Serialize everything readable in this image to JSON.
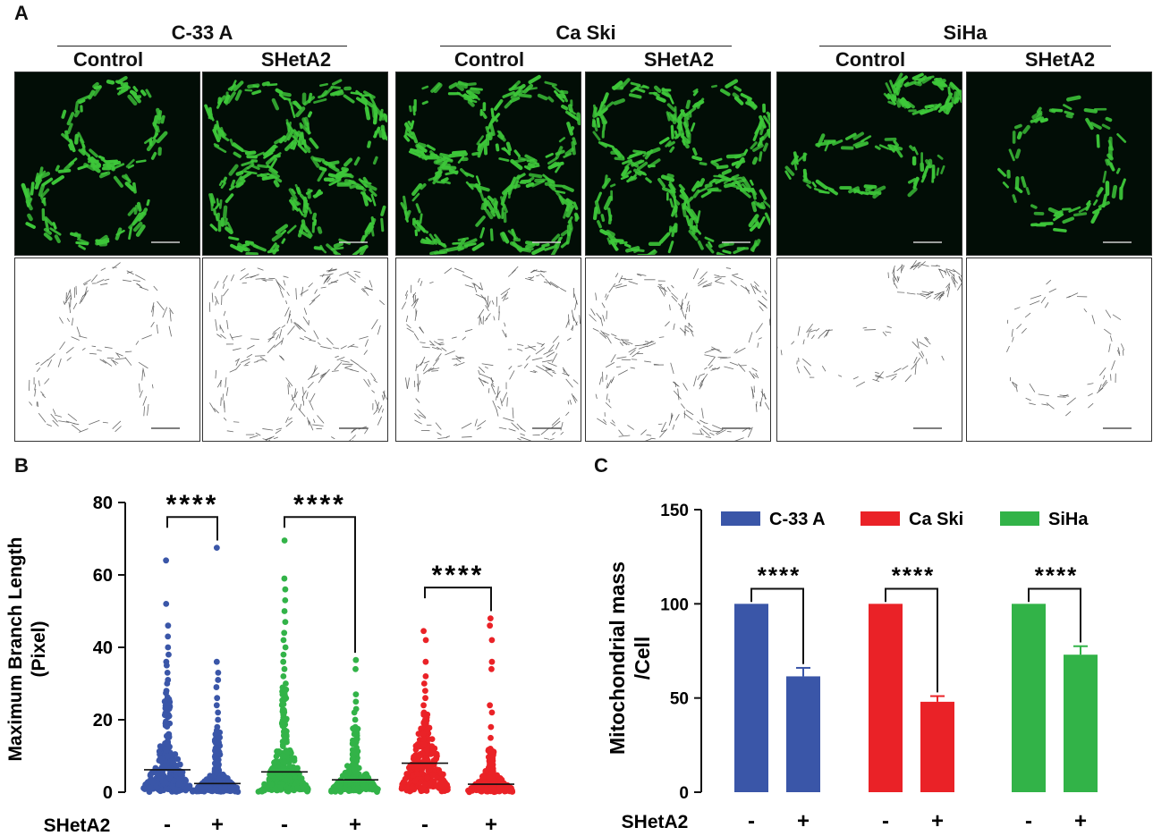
{
  "panel_labels": {
    "a": "A",
    "b": "B",
    "c": "C"
  },
  "panel_a": {
    "groups": [
      {
        "name": "C-33 A",
        "conditions": [
          "Control",
          "SHetA2"
        ]
      },
      {
        "name": "Ca Ski",
        "conditions": [
          "Control",
          "SHetA2"
        ]
      },
      {
        "name": "SiHa",
        "conditions": [
          "Control",
          "SHetA2"
        ]
      }
    ],
    "fluorescence_color": "#3ec83a",
    "scale_bar_color_fluorescence": "#cfcfcf",
    "scale_bar_color_skeleton": "#555555"
  },
  "chart_data": [
    {
      "type": "scatter",
      "panel": "B",
      "ylabel": "Maximum Branch Length (Pixel)",
      "ylabel_lines": [
        "Maximum Branch Length",
        "(Pixel)"
      ],
      "ylim": [
        0,
        80
      ],
      "yticks": [
        "0",
        "20",
        "40",
        "60",
        "80"
      ],
      "treatment_label": "SHetA2",
      "x_tick_labels": [
        "-",
        "+",
        "-",
        "+",
        "-",
        "+"
      ],
      "series": [
        {
          "color": "#3a56a8",
          "mean": 6.2,
          "max": 64,
          "outliers": [
            64,
            52,
            46,
            43,
            40,
            38,
            36,
            35,
            33,
            31,
            30,
            28
          ]
        },
        {
          "color": "#3a56a8",
          "mean": 2.4,
          "max": 67.5,
          "outliers": [
            67.5,
            36,
            33,
            31,
            29,
            26,
            24,
            22,
            20,
            18
          ]
        },
        {
          "color": "#32b348",
          "mean": 5.6,
          "max": 69.5,
          "outliers": [
            69.5,
            59,
            56,
            53,
            50,
            47,
            44,
            42,
            40,
            38,
            36,
            34,
            32,
            30
          ]
        },
        {
          "color": "#32b348",
          "mean": 3.4,
          "max": 36.5,
          "outliers": [
            36.5,
            34,
            27,
            25,
            23,
            22,
            20,
            18
          ]
        },
        {
          "color": "#ea2227",
          "mean": 8.0,
          "max": 44.5,
          "outliers": [
            44.5,
            42,
            36,
            32,
            30,
            28,
            26,
            24,
            22
          ]
        },
        {
          "color": "#ea2227",
          "mean": 2.2,
          "max": 48,
          "outliers": [
            48,
            46,
            42,
            36,
            34,
            24,
            22,
            18,
            15,
            12
          ]
        }
      ],
      "significance": [
        {
          "pair": [
            0,
            1
          ],
          "label": "****"
        },
        {
          "pair": [
            2,
            3
          ],
          "label": "****"
        },
        {
          "pair": [
            4,
            5
          ],
          "label": "****"
        }
      ]
    },
    {
      "type": "bar",
      "panel": "C",
      "ylabel": "Mitochondrial mass /Cell",
      "ylabel_lines": [
        "Mitochondrial mass",
        "/Cell"
      ],
      "ylim": [
        0,
        150
      ],
      "yticks": [
        "0",
        "50",
        "100",
        "150"
      ],
      "treatment_label": "SHetA2",
      "legend": [
        {
          "name": "C-33 A",
          "color": "#3a56a8"
        },
        {
          "name": "Ca Ski",
          "color": "#ea2227"
        },
        {
          "name": "SiHa",
          "color": "#32b348"
        }
      ],
      "legend_position": "top",
      "x_tick_labels": [
        "-",
        "+",
        "-",
        "+",
        "-",
        "+"
      ],
      "bars": [
        {
          "value": 100,
          "error": 0,
          "color": "#3a56a8"
        },
        {
          "value": 61.5,
          "error": 4.5,
          "color": "#3a56a8"
        },
        {
          "value": 100,
          "error": 0,
          "color": "#ea2227"
        },
        {
          "value": 48,
          "error": 3,
          "color": "#ea2227"
        },
        {
          "value": 100,
          "error": 0,
          "color": "#32b348"
        },
        {
          "value": 73,
          "error": 4.5,
          "color": "#32b348"
        }
      ],
      "significance": [
        {
          "pair": [
            0,
            1
          ],
          "label": "****"
        },
        {
          "pair": [
            2,
            3
          ],
          "label": "****"
        },
        {
          "pair": [
            4,
            5
          ],
          "label": "****"
        }
      ]
    }
  ]
}
